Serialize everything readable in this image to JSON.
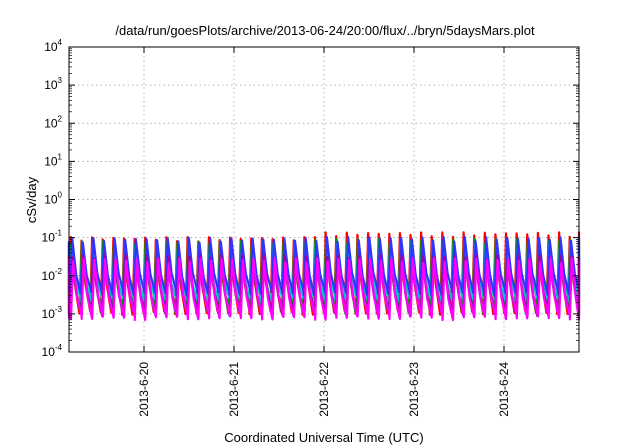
{
  "chart_data": {
    "type": "line",
    "title": "/data/run/goesPlots/archive/2013-06-24/20:00/flux/../bryn/5daysMars.plot",
    "xlabel": "Coordinated Universal Time (UTC)",
    "ylabel": "cSv/day",
    "x_range": [
      "2013-06-19 04:00",
      "2013-06-24 20:00"
    ],
    "x_ticks": [
      "2013-6-20",
      "2013-6-21",
      "2013-6-22",
      "2013-6-23",
      "2013-6-24"
    ],
    "y_scale": "log",
    "ylim": [
      0.0001,
      10000
    ],
    "y_ticks": [
      {
        "base": "10",
        "exp": "-4"
      },
      {
        "base": "10",
        "exp": "-3"
      },
      {
        "base": "10",
        "exp": "-2"
      },
      {
        "base": "10",
        "exp": "-1"
      },
      {
        "base": "10",
        "exp": "0"
      },
      {
        "base": "10",
        "exp": "1"
      },
      {
        "base": "10",
        "exp": "2"
      },
      {
        "base": "10",
        "exp": "3"
      },
      {
        "base": "10",
        "exp": "4"
      }
    ],
    "grid": true,
    "legend": "none",
    "cycle_hours": 2.83,
    "series": [
      {
        "color": "#ff0000",
        "peak": 0.09,
        "trough": 0.0011,
        "peak_late": 0.12
      },
      {
        "color": "#00a000",
        "peak": 0.07,
        "trough": 0.0012,
        "peak_late": 0.08
      },
      {
        "color": "#00c8c8",
        "peak": 0.05,
        "trough": 0.0025,
        "peak_late": 0.06
      },
      {
        "color": "#3333ff",
        "peak": 0.085,
        "trough": 0.0035,
        "peak_late": 0.09
      },
      {
        "color": "#a000a0",
        "peak": 0.03,
        "trough": 0.001,
        "peak_late": 0.03
      },
      {
        "color": "#ff00ff",
        "peak": 0.025,
        "trough": 0.0008,
        "peak_late": 0.025
      }
    ]
  }
}
